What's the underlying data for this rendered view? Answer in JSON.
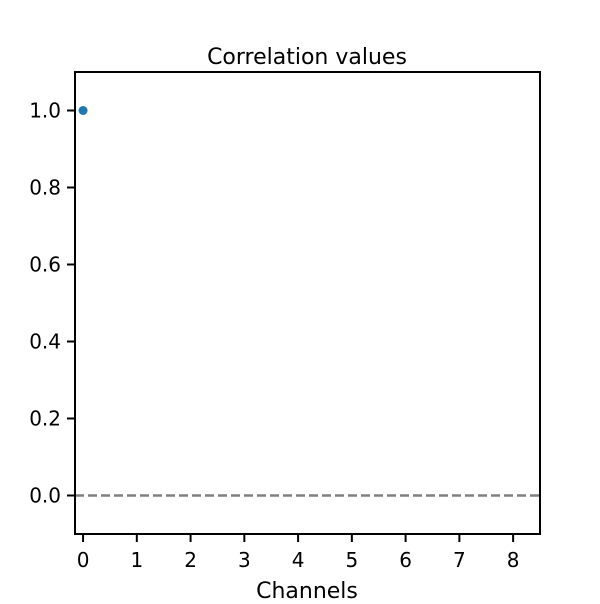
{
  "chart_data": {
    "type": "scatter",
    "title": "Correlation values",
    "xlabel": "Channels",
    "ylabel": "",
    "xlim": [
      -0.15,
      8.5
    ],
    "ylim": [
      -0.1,
      1.1
    ],
    "x_ticks": [
      0,
      1,
      2,
      3,
      4,
      5,
      6,
      7,
      8
    ],
    "x_tick_labels": [
      "0",
      "1",
      "2",
      "3",
      "4",
      "5",
      "6",
      "7",
      "8"
    ],
    "y_ticks": [
      0.0,
      0.2,
      0.4,
      0.6,
      0.8,
      1.0
    ],
    "y_tick_labels": [
      "0.0",
      "0.2",
      "0.4",
      "0.6",
      "0.8",
      "1.0"
    ],
    "grid": false,
    "series": [
      {
        "x": [
          0
        ],
        "y": [
          1.0
        ],
        "color": "#1f77b4"
      }
    ],
    "reference_line": {
      "y": 0.0,
      "style": "dashed",
      "color": "#808080"
    }
  }
}
